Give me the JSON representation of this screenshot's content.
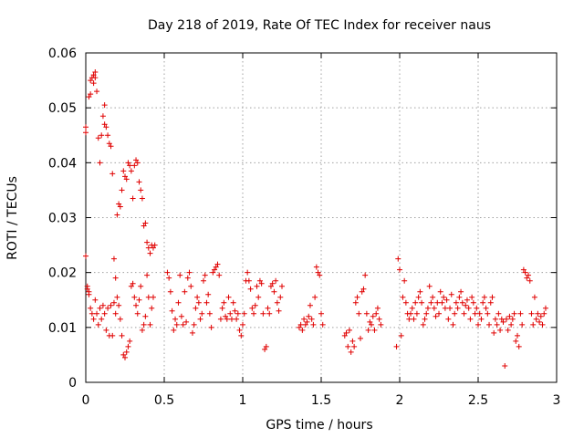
{
  "chart_data": {
    "type": "scatter",
    "title": "Day 218 of 2019, Rate Of TEC Index for receiver naus",
    "xlabel": "GPS time / hours",
    "ylabel": "ROTI / TECUs",
    "xlim": [
      0,
      3
    ],
    "ylim": [
      0,
      0.06
    ],
    "xticks": [
      0,
      0.5,
      1,
      1.5,
      2,
      2.5,
      3
    ],
    "xtick_labels": [
      "0",
      "0.5",
      "1",
      "1.5",
      "2",
      "2.5",
      "3"
    ],
    "yticks": [
      0,
      0.01,
      0.02,
      0.03,
      0.04,
      0.05,
      0.06
    ],
    "ytick_labels": [
      "0",
      "0.01",
      "0.02",
      "0.03",
      "0.04",
      "0.05",
      "0.06"
    ],
    "grid": true,
    "marker": "+",
    "series": [
      {
        "name": "ROTI",
        "color": "#e00000",
        "points": [
          [
            0.0,
            0.0455
          ],
          [
            0.0,
            0.0465
          ],
          [
            0.0,
            0.023
          ],
          [
            0.01,
            0.0175
          ],
          [
            0.01,
            0.017
          ],
          [
            0.02,
            0.0165
          ],
          [
            0.02,
            0.052
          ],
          [
            0.03,
            0.0525
          ],
          [
            0.03,
            0.055
          ],
          [
            0.04,
            0.0555
          ],
          [
            0.05,
            0.056
          ],
          [
            0.05,
            0.0545
          ],
          [
            0.06,
            0.0565
          ],
          [
            0.06,
            0.0555
          ],
          [
            0.07,
            0.053
          ],
          [
            0.08,
            0.0445
          ],
          [
            0.09,
            0.04
          ],
          [
            0.1,
            0.045
          ],
          [
            0.11,
            0.0485
          ],
          [
            0.12,
            0.0505
          ],
          [
            0.12,
            0.047
          ],
          [
            0.13,
            0.0465
          ],
          [
            0.14,
            0.045
          ],
          [
            0.15,
            0.0435
          ],
          [
            0.16,
            0.043
          ],
          [
            0.17,
            0.038
          ],
          [
            0.18,
            0.0225
          ],
          [
            0.19,
            0.019
          ],
          [
            0.2,
            0.0305
          ],
          [
            0.21,
            0.0325
          ],
          [
            0.22,
            0.032
          ],
          [
            0.23,
            0.035
          ],
          [
            0.24,
            0.0385
          ],
          [
            0.25,
            0.0375
          ],
          [
            0.26,
            0.037
          ],
          [
            0.27,
            0.04
          ],
          [
            0.28,
            0.0395
          ],
          [
            0.29,
            0.0385
          ],
          [
            0.3,
            0.0335
          ],
          [
            0.31,
            0.0395
          ],
          [
            0.32,
            0.0405
          ],
          [
            0.33,
            0.04
          ],
          [
            0.34,
            0.0365
          ],
          [
            0.35,
            0.035
          ],
          [
            0.36,
            0.0335
          ],
          [
            0.37,
            0.0285
          ],
          [
            0.38,
            0.029
          ],
          [
            0.39,
            0.0255
          ],
          [
            0.4,
            0.0245
          ],
          [
            0.41,
            0.0235
          ],
          [
            0.42,
            0.025
          ],
          [
            0.43,
            0.0245
          ],
          [
            0.44,
            0.025
          ],
          [
            0.02,
            0.016
          ],
          [
            0.03,
            0.0135
          ],
          [
            0.04,
            0.0125
          ],
          [
            0.05,
            0.0115
          ],
          [
            0.06,
            0.015
          ],
          [
            0.07,
            0.0125
          ],
          [
            0.08,
            0.0105
          ],
          [
            0.09,
            0.0135
          ],
          [
            0.1,
            0.0115
          ],
          [
            0.11,
            0.014
          ],
          [
            0.12,
            0.0125
          ],
          [
            0.13,
            0.0095
          ],
          [
            0.14,
            0.0135
          ],
          [
            0.15,
            0.0085
          ],
          [
            0.16,
            0.014
          ],
          [
            0.17,
            0.0085
          ],
          [
            0.18,
            0.0145
          ],
          [
            0.19,
            0.0125
          ],
          [
            0.2,
            0.0155
          ],
          [
            0.21,
            0.014
          ],
          [
            0.22,
            0.0115
          ],
          [
            0.23,
            0.0085
          ],
          [
            0.24,
            0.005
          ],
          [
            0.25,
            0.0045
          ],
          [
            0.26,
            0.0055
          ],
          [
            0.27,
            0.0065
          ],
          [
            0.28,
            0.0075
          ],
          [
            0.29,
            0.0175
          ],
          [
            0.3,
            0.018
          ],
          [
            0.31,
            0.0155
          ],
          [
            0.32,
            0.014
          ],
          [
            0.33,
            0.0125
          ],
          [
            0.34,
            0.015
          ],
          [
            0.35,
            0.0175
          ],
          [
            0.36,
            0.0095
          ],
          [
            0.37,
            0.0105
          ],
          [
            0.38,
            0.012
          ],
          [
            0.39,
            0.0195
          ],
          [
            0.4,
            0.0155
          ],
          [
            0.41,
            0.0105
          ],
          [
            0.42,
            0.0135
          ],
          [
            0.43,
            0.0155
          ],
          [
            0.52,
            0.02
          ],
          [
            0.53,
            0.019
          ],
          [
            0.54,
            0.0165
          ],
          [
            0.55,
            0.013
          ],
          [
            0.56,
            0.0095
          ],
          [
            0.57,
            0.0115
          ],
          [
            0.58,
            0.0105
          ],
          [
            0.59,
            0.0145
          ],
          [
            0.6,
            0.0195
          ],
          [
            0.61,
            0.012
          ],
          [
            0.62,
            0.0105
          ],
          [
            0.63,
            0.0165
          ],
          [
            0.64,
            0.011
          ],
          [
            0.65,
            0.019
          ],
          [
            0.66,
            0.02
          ],
          [
            0.67,
            0.0175
          ],
          [
            0.68,
            0.009
          ],
          [
            0.69,
            0.0105
          ],
          [
            0.7,
            0.0135
          ],
          [
            0.71,
            0.0155
          ],
          [
            0.72,
            0.0145
          ],
          [
            0.73,
            0.0115
          ],
          [
            0.74,
            0.0125
          ],
          [
            0.75,
            0.0185
          ],
          [
            0.76,
            0.0195
          ],
          [
            0.77,
            0.0145
          ],
          [
            0.78,
            0.016
          ],
          [
            0.79,
            0.0125
          ],
          [
            0.8,
            0.01
          ],
          [
            0.81,
            0.02
          ],
          [
            0.82,
            0.0205
          ],
          [
            0.83,
            0.021
          ],
          [
            0.84,
            0.0215
          ],
          [
            0.85,
            0.0195
          ],
          [
            0.86,
            0.0115
          ],
          [
            0.87,
            0.0135
          ],
          [
            0.88,
            0.0145
          ],
          [
            0.89,
            0.012
          ],
          [
            0.9,
            0.0115
          ],
          [
            0.91,
            0.0155
          ],
          [
            0.92,
            0.0125
          ],
          [
            0.93,
            0.0115
          ],
          [
            0.94,
            0.0145
          ],
          [
            0.95,
            0.013
          ],
          [
            0.96,
            0.0115
          ],
          [
            0.97,
            0.0125
          ],
          [
            0.98,
            0.0095
          ],
          [
            0.99,
            0.0085
          ],
          [
            1.0,
            0.0105
          ],
          [
            1.01,
            0.0125
          ],
          [
            1.02,
            0.0185
          ],
          [
            1.03,
            0.02
          ],
          [
            1.04,
            0.0185
          ],
          [
            1.05,
            0.017
          ],
          [
            1.06,
            0.0135
          ],
          [
            1.07,
            0.0125
          ],
          [
            1.08,
            0.014
          ],
          [
            1.09,
            0.0175
          ],
          [
            1.1,
            0.0155
          ],
          [
            1.11,
            0.0185
          ],
          [
            1.12,
            0.018
          ],
          [
            1.13,
            0.0125
          ],
          [
            1.14,
            0.006
          ],
          [
            1.15,
            0.0065
          ],
          [
            1.16,
            0.0135
          ],
          [
            1.17,
            0.0125
          ],
          [
            1.18,
            0.0175
          ],
          [
            1.19,
            0.018
          ],
          [
            1.2,
            0.0165
          ],
          [
            1.21,
            0.0185
          ],
          [
            1.22,
            0.0145
          ],
          [
            1.23,
            0.013
          ],
          [
            1.24,
            0.0155
          ],
          [
            1.25,
            0.0175
          ],
          [
            1.36,
            0.01
          ],
          [
            1.37,
            0.0105
          ],
          [
            1.38,
            0.0095
          ],
          [
            1.39,
            0.0115
          ],
          [
            1.4,
            0.0105
          ],
          [
            1.41,
            0.011
          ],
          [
            1.42,
            0.012
          ],
          [
            1.43,
            0.014
          ],
          [
            1.44,
            0.0115
          ],
          [
            1.45,
            0.0105
          ],
          [
            1.46,
            0.0155
          ],
          [
            1.47,
            0.021
          ],
          [
            1.48,
            0.02
          ],
          [
            1.49,
            0.0195
          ],
          [
            1.5,
            0.0125
          ],
          [
            1.51,
            0.0105
          ],
          [
            1.65,
            0.0085
          ],
          [
            1.66,
            0.009
          ],
          [
            1.67,
            0.0065
          ],
          [
            1.68,
            0.0095
          ],
          [
            1.69,
            0.0055
          ],
          [
            1.7,
            0.0075
          ],
          [
            1.71,
            0.0065
          ],
          [
            1.72,
            0.0145
          ],
          [
            1.73,
            0.0155
          ],
          [
            1.74,
            0.0125
          ],
          [
            1.75,
            0.008
          ],
          [
            1.76,
            0.0165
          ],
          [
            1.77,
            0.017
          ],
          [
            1.78,
            0.0195
          ],
          [
            1.79,
            0.0125
          ],
          [
            1.8,
            0.0095
          ],
          [
            1.81,
            0.011
          ],
          [
            1.82,
            0.0105
          ],
          [
            1.83,
            0.012
          ],
          [
            1.84,
            0.0095
          ],
          [
            1.85,
            0.0125
          ],
          [
            1.86,
            0.0135
          ],
          [
            1.87,
            0.0115
          ],
          [
            1.88,
            0.0105
          ],
          [
            1.98,
            0.0065
          ],
          [
            1.99,
            0.0225
          ],
          [
            2.0,
            0.0205
          ],
          [
            2.01,
            0.0085
          ],
          [
            2.02,
            0.0155
          ],
          [
            2.03,
            0.0185
          ],
          [
            2.04,
            0.0145
          ],
          [
            2.05,
            0.0125
          ],
          [
            2.06,
            0.0115
          ],
          [
            2.07,
            0.0125
          ],
          [
            2.08,
            0.0135
          ],
          [
            2.09,
            0.0115
          ],
          [
            2.1,
            0.0145
          ],
          [
            2.11,
            0.0125
          ],
          [
            2.12,
            0.0155
          ],
          [
            2.13,
            0.0165
          ],
          [
            2.14,
            0.0145
          ],
          [
            2.15,
            0.0105
          ],
          [
            2.16,
            0.0115
          ],
          [
            2.17,
            0.0125
          ],
          [
            2.18,
            0.0135
          ],
          [
            2.19,
            0.0175
          ],
          [
            2.2,
            0.0145
          ],
          [
            2.21,
            0.0155
          ],
          [
            2.22,
            0.0135
          ],
          [
            2.23,
            0.012
          ],
          [
            2.24,
            0.0145
          ],
          [
            2.25,
            0.0125
          ],
          [
            2.26,
            0.0165
          ],
          [
            2.27,
            0.0145
          ],
          [
            2.28,
            0.0155
          ],
          [
            2.29,
            0.0135
          ],
          [
            2.3,
            0.015
          ],
          [
            2.31,
            0.0115
          ],
          [
            2.32,
            0.0135
          ],
          [
            2.33,
            0.016
          ],
          [
            2.34,
            0.0105
          ],
          [
            2.35,
            0.0125
          ],
          [
            2.36,
            0.0145
          ],
          [
            2.37,
            0.0135
          ],
          [
            2.38,
            0.0155
          ],
          [
            2.39,
            0.0165
          ],
          [
            2.4,
            0.0145
          ],
          [
            2.41,
            0.0125
          ],
          [
            2.42,
            0.014
          ],
          [
            2.43,
            0.015
          ],
          [
            2.44,
            0.0135
          ],
          [
            2.45,
            0.0115
          ],
          [
            2.46,
            0.0155
          ],
          [
            2.47,
            0.0145
          ],
          [
            2.48,
            0.0125
          ],
          [
            2.49,
            0.0135
          ],
          [
            2.5,
            0.0105
          ],
          [
            2.51,
            0.0125
          ],
          [
            2.52,
            0.0115
          ],
          [
            2.53,
            0.0145
          ],
          [
            2.54,
            0.0155
          ],
          [
            2.55,
            0.0135
          ],
          [
            2.56,
            0.0125
          ],
          [
            2.57,
            0.0105
          ],
          [
            2.58,
            0.0145
          ],
          [
            2.59,
            0.0155
          ],
          [
            2.6,
            0.009
          ],
          [
            2.61,
            0.0115
          ],
          [
            2.62,
            0.0105
          ],
          [
            2.63,
            0.0125
          ],
          [
            2.64,
            0.0095
          ],
          [
            2.65,
            0.0115
          ],
          [
            2.66,
            0.011
          ],
          [
            2.67,
            0.003
          ],
          [
            2.68,
            0.0115
          ],
          [
            2.69,
            0.0095
          ],
          [
            2.7,
            0.012
          ],
          [
            2.71,
            0.0105
          ],
          [
            2.72,
            0.0115
          ],
          [
            2.73,
            0.0125
          ],
          [
            2.74,
            0.0075
          ],
          [
            2.75,
            0.0085
          ],
          [
            2.76,
            0.0065
          ],
          [
            2.77,
            0.0125
          ],
          [
            2.78,
            0.0105
          ],
          [
            2.79,
            0.0205
          ],
          [
            2.8,
            0.02
          ],
          [
            2.81,
            0.019
          ],
          [
            2.82,
            0.0195
          ],
          [
            2.83,
            0.0185
          ],
          [
            2.84,
            0.0125
          ],
          [
            2.85,
            0.0105
          ],
          [
            2.86,
            0.0155
          ],
          [
            2.87,
            0.0115
          ],
          [
            2.88,
            0.0125
          ],
          [
            2.89,
            0.011
          ],
          [
            2.9,
            0.012
          ],
          [
            2.91,
            0.0105
          ],
          [
            2.92,
            0.0125
          ],
          [
            2.93,
            0.0135
          ]
        ]
      }
    ]
  }
}
